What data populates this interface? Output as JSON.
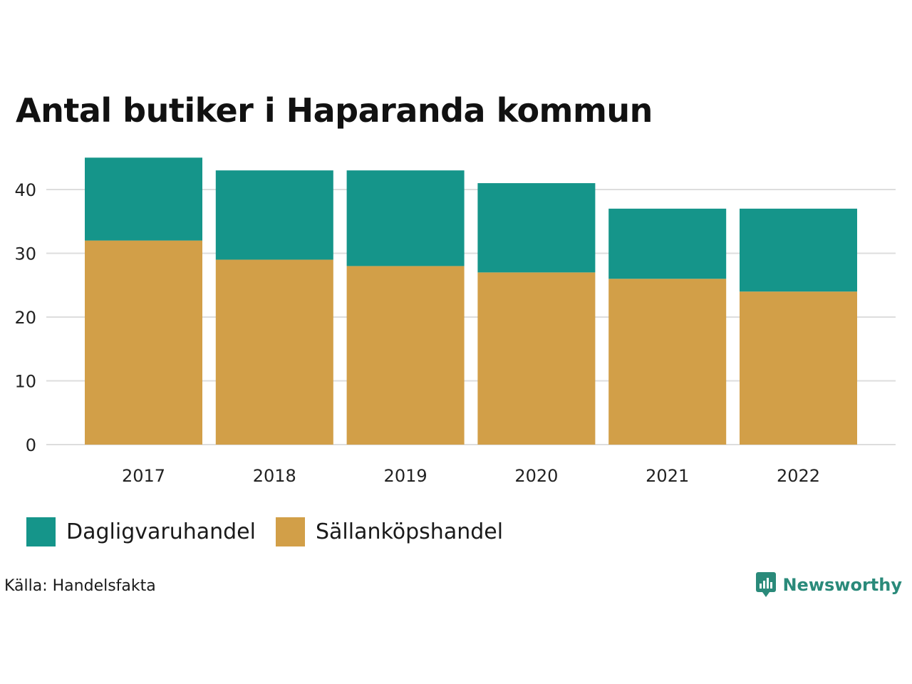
{
  "chart_data": {
    "type": "bar",
    "stacked": true,
    "title": "Antal butiker i Haparanda kommun",
    "categories": [
      "2017",
      "2018",
      "2019",
      "2020",
      "2021",
      "2022"
    ],
    "series": [
      {
        "name": "Sällanköpshandel",
        "color": "#D29F48",
        "values": [
          32,
          29,
          28,
          27,
          26,
          24
        ]
      },
      {
        "name": "Dagligvaruhandel",
        "color": "#15958A",
        "values": [
          13,
          14,
          15,
          14,
          11,
          13
        ]
      }
    ],
    "yticks": [
      "0",
      "10",
      "20",
      "30",
      "40"
    ],
    "ylim": [
      0,
      45
    ],
    "grid": true,
    "legend_placement": "bottom-left"
  },
  "legend": [
    {
      "label": "Dagligvaruhandel",
      "color": "#15958A"
    },
    {
      "label": "Sällanköpshandel",
      "color": "#D29F48"
    }
  ],
  "source": "Källa: Handelsfakta",
  "brand": {
    "name": "Newsworthy",
    "icon": "newsworthy-logo-icon",
    "color": "#2a8a7a"
  }
}
